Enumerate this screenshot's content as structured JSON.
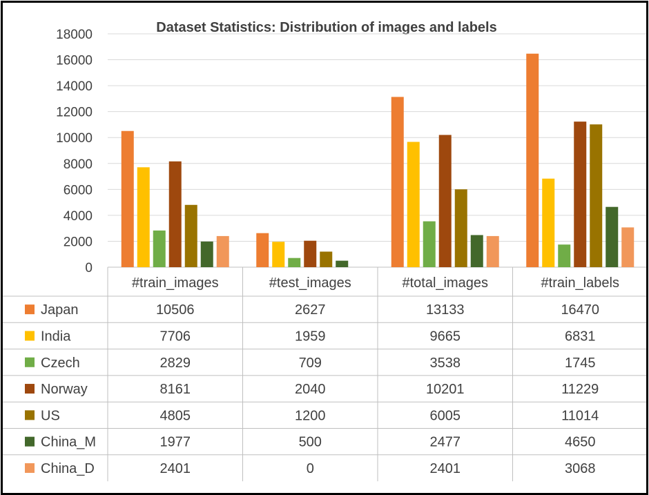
{
  "chart_data": {
    "type": "bar",
    "title": "Dataset Statistics: Distribution of images and labels",
    "categories": [
      "#train_images",
      "#test_images",
      "#total_images",
      "#train_labels"
    ],
    "ylim": [
      0,
      18000
    ],
    "yticks": [
      0,
      2000,
      4000,
      6000,
      8000,
      10000,
      12000,
      14000,
      16000,
      18000
    ],
    "grid": true,
    "legend": "data-table-rows",
    "series": [
      {
        "name": "Japan",
        "color": "#ED7D31",
        "values": [
          10506,
          2627,
          13133,
          16470
        ]
      },
      {
        "name": "India",
        "color": "#FFC000",
        "values": [
          7706,
          1959,
          9665,
          6831
        ]
      },
      {
        "name": "Czech",
        "color": "#70AD47",
        "values": [
          2829,
          709,
          3538,
          1745
        ]
      },
      {
        "name": "Norway",
        "color": "#9E480E",
        "values": [
          8161,
          2040,
          10201,
          11229
        ]
      },
      {
        "name": "US",
        "color": "#997300",
        "values": [
          4805,
          1200,
          6005,
          11014
        ]
      },
      {
        "name": "China_M",
        "color": "#43682B",
        "values": [
          1977,
          500,
          2477,
          4650
        ]
      },
      {
        "name": "China_D",
        "color": "#F1975A",
        "values": [
          2401,
          0,
          2401,
          3068
        ]
      }
    ]
  }
}
